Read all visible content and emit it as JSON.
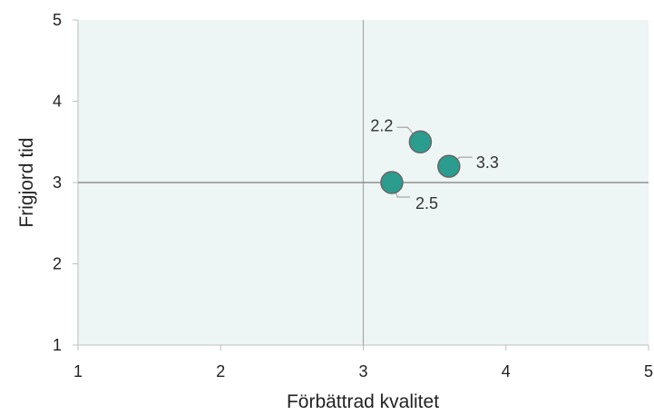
{
  "chart_data": {
    "type": "scatter",
    "xlabel": "Förbättrad kvalitet",
    "ylabel": "Frigjord tid",
    "xlim": [
      1,
      5
    ],
    "ylim": [
      1,
      5
    ],
    "xticks": [
      "1",
      "2",
      "3",
      "4",
      "5"
    ],
    "yticks": [
      "1",
      "2",
      "3",
      "4",
      "5"
    ],
    "crosshair": {
      "x": 3,
      "y": 3
    },
    "grid": false,
    "colors": {
      "plot_background": "#eef5f5",
      "marker_fill": "#2a9d8f",
      "marker_stroke": "#666666",
      "crosshair": "#808080"
    },
    "points": [
      {
        "x": 3.4,
        "y": 3.5,
        "label": "2.2"
      },
      {
        "x": 3.6,
        "y": 3.2,
        "label": "3.3"
      },
      {
        "x": 3.2,
        "y": 3.0,
        "label": "2.5"
      }
    ]
  }
}
